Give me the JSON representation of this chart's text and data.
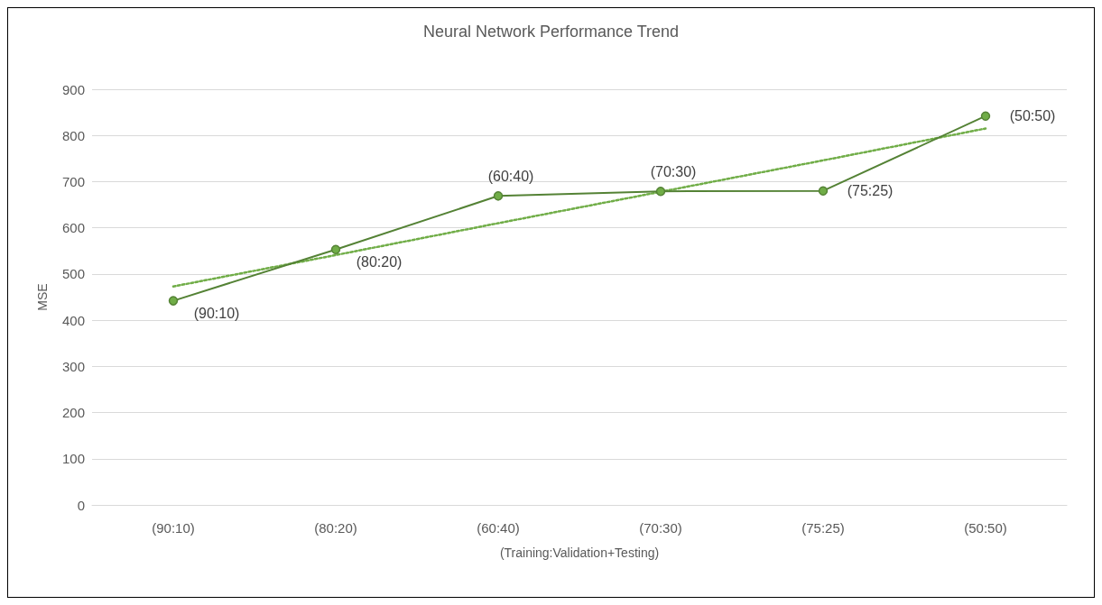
{
  "chart_data": {
    "type": "line",
    "title": "Neural Network Performance Trend",
    "xlabel": "(Training:Validation+Testing)",
    "ylabel": "MSE",
    "categories": [
      "(90:10)",
      "(80:20)",
      "(60:40)",
      "(70:30)",
      "(75:25)",
      "(50:50)"
    ],
    "series": [
      {
        "color": "#548235",
        "values": [
          442,
          553,
          669,
          679,
          680,
          842
        ],
        "marker": "circle",
        "line_style": "solid"
      },
      {
        "color": "#70ad47",
        "values": [
          473,
          541,
          610,
          678,
          746,
          815
        ],
        "marker": "none",
        "line_style": "dotted"
      }
    ],
    "annotations": [
      {
        "text": "(90:10)",
        "x": "(90:10)",
        "y": 442
      },
      {
        "text": "(80:20)",
        "x": "(80:20)",
        "y": 553
      },
      {
        "text": "(60:40)",
        "x": "(60:40)",
        "y": 669
      },
      {
        "text": "(70:30)",
        "x": "(70:30)",
        "y": 679
      },
      {
        "text": "(75:25)",
        "x": "(75:25)",
        "y": 680
      },
      {
        "text": "(50:50)",
        "x": "(50:50)",
        "y": 842
      }
    ],
    "ylim": [
      0,
      900
    ],
    "yticks": [
      0,
      100,
      200,
      300,
      400,
      500,
      600,
      700,
      800,
      900
    ],
    "grid": "y"
  }
}
